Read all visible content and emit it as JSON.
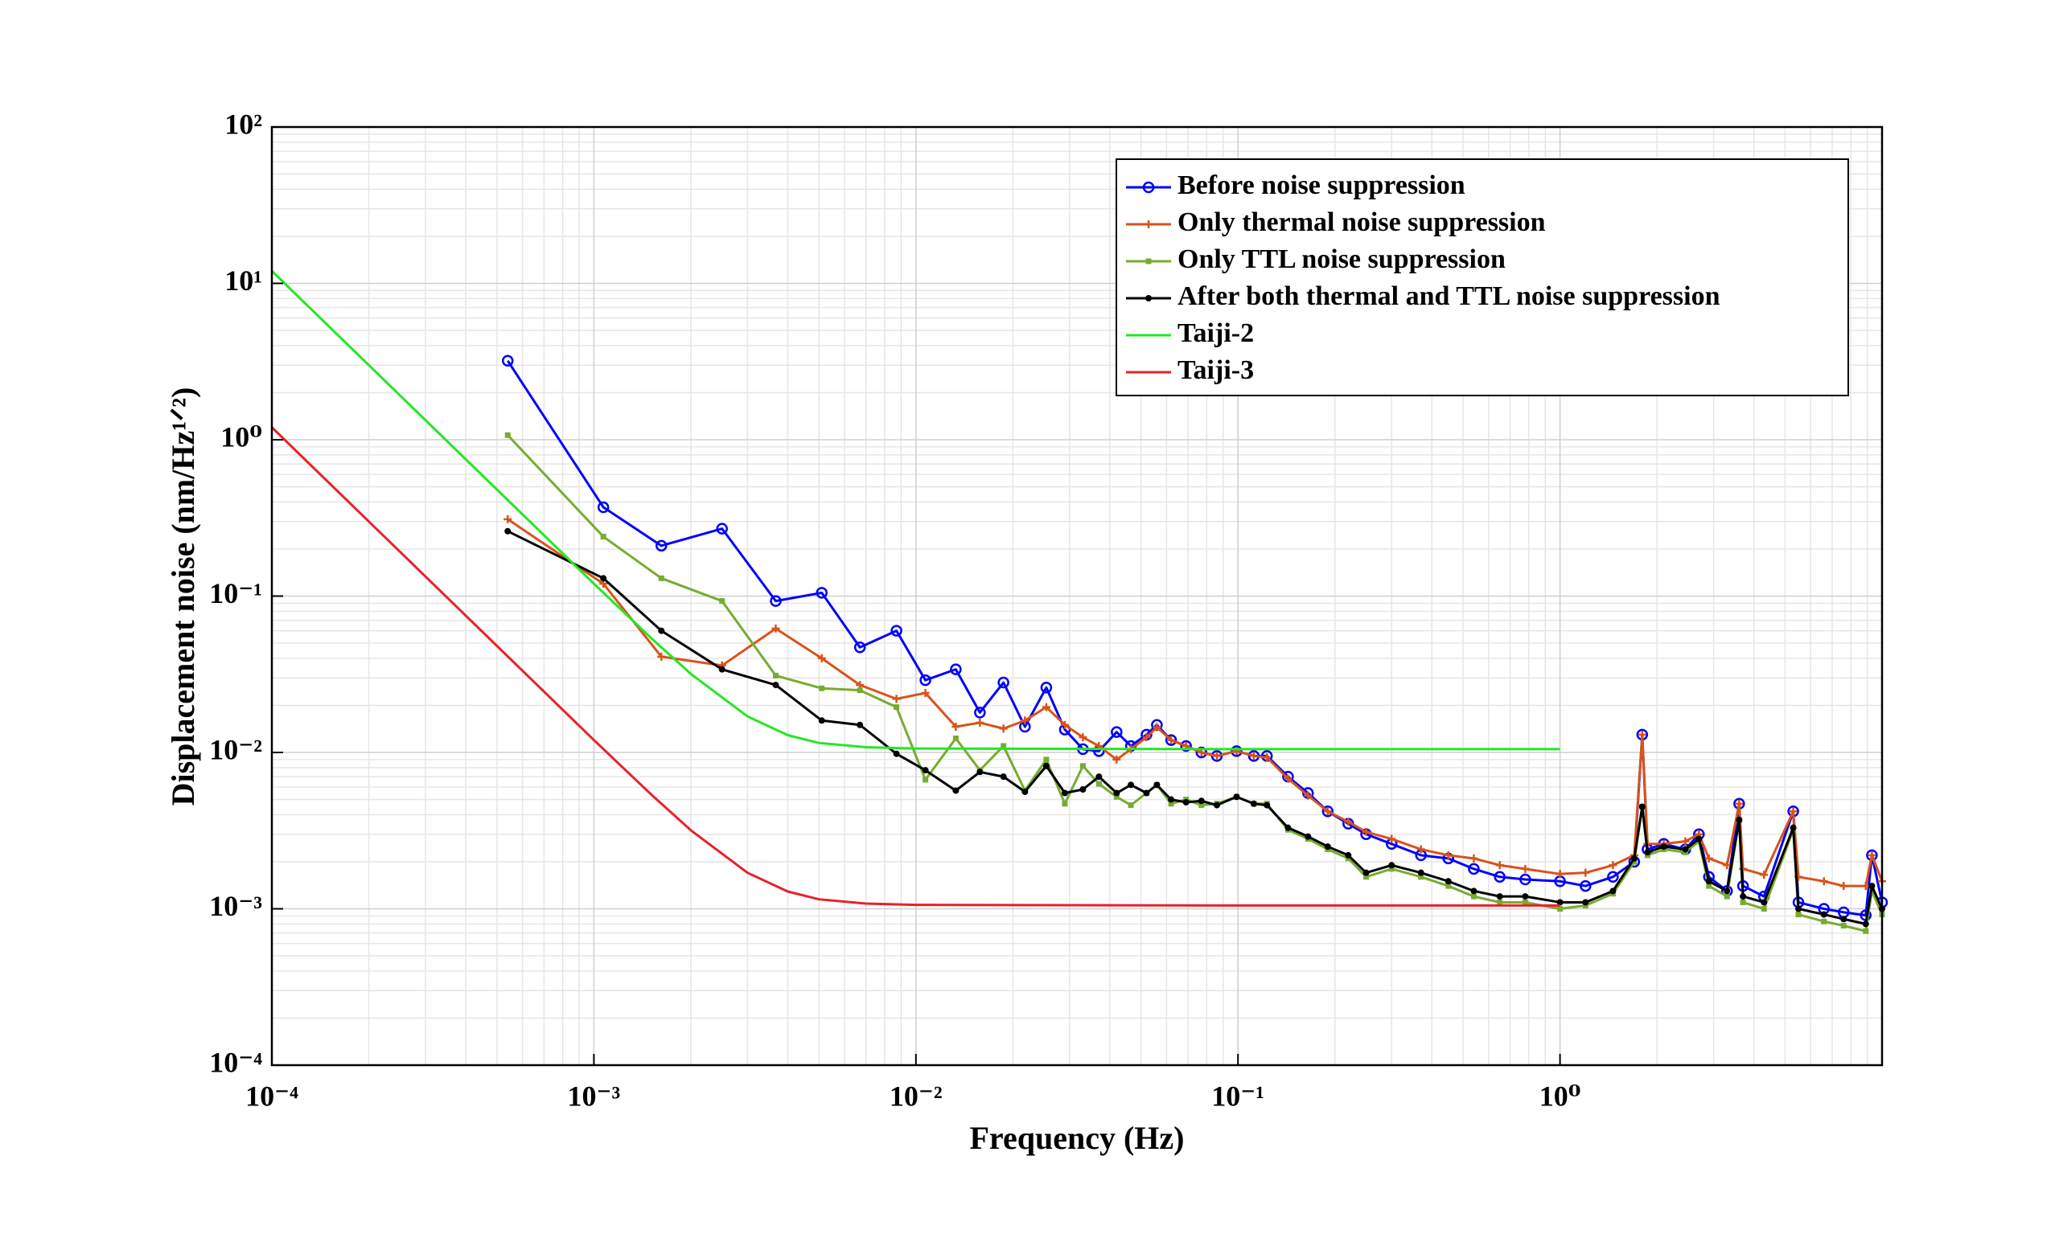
{
  "chart_data": {
    "type": "line",
    "xlabel": "Frequency (Hz)",
    "ylabel": "Displacement noise (nm/Hz¹ᐟ²)",
    "log_x": true,
    "log_y": true,
    "grid": true,
    "minor_grid": true,
    "legend": "upper right",
    "xlim": [
      0.0001,
      10
    ],
    "ylim": [
      0.0001,
      100
    ],
    "xticks": [
      {
        "value": 0.0001,
        "label": "10⁻⁴"
      },
      {
        "value": 0.001,
        "label": "10⁻³"
      },
      {
        "value": 0.01,
        "label": "10⁻²"
      },
      {
        "value": 0.1,
        "label": "10⁻¹"
      },
      {
        "value": 1,
        "label": "10⁰"
      }
    ],
    "yticks": [
      {
        "value": 0.0001,
        "label": "10⁻⁴"
      },
      {
        "value": 0.001,
        "label": "10⁻³"
      },
      {
        "value": 0.01,
        "label": "10⁻²"
      },
      {
        "value": 0.1,
        "label": "10⁻¹"
      },
      {
        "value": 1,
        "label": "10⁰"
      },
      {
        "value": 10,
        "label": "10¹"
      },
      {
        "value": 100,
        "label": "10²"
      }
    ],
    "x": [
      0.00054,
      0.00107,
      0.00162,
      0.0025,
      0.00367,
      0.0051,
      0.0067,
      0.0087,
      0.0107,
      0.0133,
      0.0158,
      0.0187,
      0.0218,
      0.0254,
      0.029,
      0.033,
      0.037,
      0.042,
      0.0465,
      0.052,
      0.056,
      0.062,
      0.069,
      0.077,
      0.086,
      0.099,
      0.112,
      0.123,
      0.143,
      0.165,
      0.19,
      0.22,
      0.25,
      0.3,
      0.37,
      0.45,
      0.54,
      0.65,
      0.78,
      1.0,
      1.2,
      1.46,
      1.7,
      1.8,
      1.87,
      2.1,
      2.45,
      2.7,
      2.9,
      3.3,
      3.6,
      3.7,
      4.3,
      5.3,
      5.5,
      6.6,
      7.6,
      8.9,
      9.3,
      10
    ],
    "series": [
      {
        "name": "Before noise suppression",
        "color": "#0000ff",
        "marker": "circle",
        "values": [
          3.2,
          0.37,
          0.21,
          0.27,
          0.093,
          0.105,
          0.047,
          0.06,
          0.029,
          0.034,
          0.018,
          0.028,
          0.0146,
          0.026,
          0.014,
          0.0105,
          0.0102,
          0.0135,
          0.011,
          0.013,
          0.015,
          0.012,
          0.011,
          0.01,
          0.0095,
          0.0102,
          0.0095,
          0.0095,
          0.007,
          0.0055,
          0.0042,
          0.0035,
          0.003,
          0.0026,
          0.0022,
          0.0021,
          0.0018,
          0.0016,
          0.00154,
          0.0015,
          0.0014,
          0.0016,
          0.002,
          0.013,
          0.0024,
          0.0026,
          0.0024,
          0.003,
          0.0016,
          0.0013,
          0.0047,
          0.0014,
          0.0012,
          0.0042,
          0.0011,
          0.001,
          0.00095,
          0.00091,
          0.0022,
          0.0011
        ]
      },
      {
        "name": "Only thermal noise suppression",
        "color": "#d95319",
        "marker": "plus",
        "values": [
          0.31,
          0.12,
          0.041,
          0.036,
          0.062,
          0.04,
          0.027,
          0.022,
          0.024,
          0.0146,
          0.0155,
          0.0142,
          0.016,
          0.0195,
          0.015,
          0.0125,
          0.011,
          0.009,
          0.0105,
          0.0125,
          0.0145,
          0.012,
          0.011,
          0.01,
          0.0095,
          0.0102,
          0.0095,
          0.0093,
          0.0068,
          0.0053,
          0.0042,
          0.0036,
          0.0031,
          0.0028,
          0.0024,
          0.0022,
          0.0021,
          0.0019,
          0.0018,
          0.00167,
          0.0017,
          0.0019,
          0.0022,
          0.013,
          0.0026,
          0.0026,
          0.0027,
          0.003,
          0.0021,
          0.0019,
          0.0047,
          0.0018,
          0.00165,
          0.0042,
          0.0016,
          0.0015,
          0.0014,
          0.0014,
          0.0022,
          0.0015
        ]
      },
      {
        "name": "Only TTL noise suppression",
        "color": "#77ac30",
        "marker": "square",
        "values": [
          1.07,
          0.24,
          0.13,
          0.093,
          0.031,
          0.0257,
          0.025,
          0.0195,
          0.0067,
          0.0123,
          0.0077,
          0.011,
          0.0057,
          0.009,
          0.0047,
          0.0082,
          0.0063,
          0.0052,
          0.0046,
          0.0055,
          0.0062,
          0.0047,
          0.005,
          0.0046,
          0.0047,
          0.0052,
          0.0047,
          0.0047,
          0.0032,
          0.0028,
          0.0024,
          0.0021,
          0.0016,
          0.0018,
          0.0016,
          0.0014,
          0.0012,
          0.0011,
          0.0011,
          0.001,
          0.00105,
          0.00125,
          0.002,
          0.0045,
          0.0022,
          0.0024,
          0.0023,
          0.0027,
          0.0014,
          0.0012,
          0.0037,
          0.0011,
          0.001,
          0.0032,
          0.00092,
          0.00083,
          0.00078,
          0.00072,
          0.0013,
          0.00092
        ]
      },
      {
        "name": "After both thermal and TTL noise suppression",
        "color": "#000000",
        "marker": "dot",
        "values": [
          0.26,
          0.13,
          0.06,
          0.034,
          0.027,
          0.016,
          0.015,
          0.0098,
          0.0077,
          0.0057,
          0.0075,
          0.007,
          0.0056,
          0.0082,
          0.0055,
          0.0058,
          0.007,
          0.0055,
          0.0062,
          0.0055,
          0.0062,
          0.005,
          0.0048,
          0.0049,
          0.0046,
          0.0052,
          0.0047,
          0.0046,
          0.0033,
          0.0029,
          0.0025,
          0.0022,
          0.0017,
          0.0019,
          0.0017,
          0.0015,
          0.0013,
          0.0012,
          0.0012,
          0.0011,
          0.0011,
          0.0013,
          0.0021,
          0.0045,
          0.0023,
          0.0025,
          0.0024,
          0.0028,
          0.0015,
          0.0013,
          0.0037,
          0.0012,
          0.0011,
          0.0033,
          0.001,
          0.00092,
          0.00086,
          0.0008,
          0.0014,
          0.001
        ]
      },
      {
        "name": "Taiji-2",
        "color": "#22e822",
        "x": [
          0.0001,
          0.0002,
          0.0003,
          0.0005,
          0.0007,
          0.001,
          0.0015,
          0.002,
          0.003,
          0.004,
          0.005,
          0.007,
          0.01,
          0.1,
          1
        ],
        "values": [
          12,
          3,
          1.334,
          0.48,
          0.245,
          0.12,
          0.0543,
          0.0318,
          0.017,
          0.0129,
          0.0115,
          0.0108,
          0.0106,
          0.0105,
          0.0105
        ]
      },
      {
        "name": "Taiji-3",
        "color": "#e8212a",
        "x": [
          0.0001,
          0.0002,
          0.0003,
          0.0005,
          0.0007,
          0.001,
          0.0015,
          0.002,
          0.003,
          0.004,
          0.005,
          0.007,
          0.01,
          0.1,
          1
        ],
        "values": [
          1.2,
          0.3,
          0.1334,
          0.048,
          0.0245,
          0.012,
          0.00543,
          0.00318,
          0.0017,
          0.00129,
          0.00115,
          0.00108,
          0.00106,
          0.00105,
          0.00105
        ]
      }
    ]
  }
}
